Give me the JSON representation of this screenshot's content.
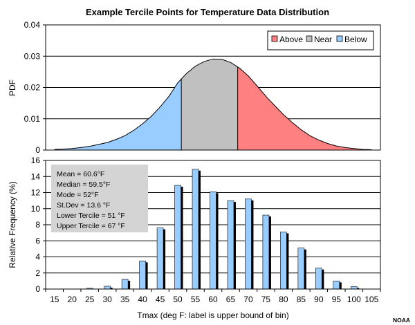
{
  "colors": {
    "below": "#99ccff",
    "near": "#c0c0c0",
    "above": "#ff8080",
    "bar_front": "#99ccff",
    "bar_shadow": "#000000",
    "stats_box": "#d4d4d4",
    "grid": "#000000"
  },
  "credit": "NOAA",
  "chart_data": [
    {
      "type": "area",
      "title": "Example Tercile Points for Temperature Data Distribution",
      "ylabel": "PDF",
      "xlim": [
        12.5,
        107.5
      ],
      "ylim": [
        0,
        0.04
      ],
      "yticks": [
        "0",
        "0.01",
        "0.02",
        "0.03",
        "0.04"
      ],
      "grid": true,
      "legend_position": "top-right",
      "legend": [
        {
          "key": "above",
          "label": "Above"
        },
        {
          "key": "near",
          "label": "Near"
        },
        {
          "key": "below",
          "label": "Below"
        }
      ],
      "lower_tercile": 51,
      "upper_tercile": 67,
      "x": [
        15,
        17.5,
        20,
        22.5,
        25,
        27.5,
        30,
        32.5,
        35,
        37.5,
        40,
        42.5,
        45,
        47.5,
        50,
        52.5,
        55,
        57.5,
        60,
        62.5,
        65,
        67.5,
        70,
        72.5,
        75,
        77.5,
        80,
        82.5,
        85,
        87.5,
        90,
        92.5,
        95,
        97.5,
        100,
        102.5,
        105
      ],
      "y": [
        0.0002,
        0.0003,
        0.0005,
        0.0008,
        0.0012,
        0.0018,
        0.0024,
        0.0034,
        0.0046,
        0.0063,
        0.0084,
        0.0108,
        0.0138,
        0.0172,
        0.0215,
        0.0245,
        0.0268,
        0.0283,
        0.0291,
        0.029,
        0.028,
        0.0262,
        0.0237,
        0.0205,
        0.0172,
        0.0142,
        0.0113,
        0.0088,
        0.0065,
        0.0046,
        0.0032,
        0.0021,
        0.0013,
        0.0008,
        0.0005,
        0.0002,
        0.0001
      ]
    },
    {
      "type": "bar",
      "xlabel": "Tmax (deg F: label is upper bound of bin)",
      "ylabel": "Relative Frequency (%)",
      "ylim": [
        0,
        16
      ],
      "yticks": [
        "0",
        "2",
        "4",
        "6",
        "8",
        "10",
        "12",
        "14",
        "16"
      ],
      "grid": true,
      "categories": [
        "15",
        "20",
        "25",
        "30",
        "35",
        "40",
        "45",
        "50",
        "55",
        "60",
        "65",
        "70",
        "75",
        "80",
        "85",
        "90",
        "95",
        "100",
        "105"
      ],
      "values": [
        0,
        0,
        0.1,
        0.35,
        1.2,
        3.5,
        7.6,
        12.9,
        14.9,
        12.1,
        11.0,
        11.2,
        9.2,
        7.1,
        5.1,
        2.6,
        1.0,
        0.3,
        0
      ],
      "stats": [
        "Mean = 60.6°F",
        "Median = 59.5°F",
        "Mode = 52°F",
        "St.Dev = 13.6 °F",
        "Lower Tercile = 51 °F",
        "Upper Tercile = 67 °F"
      ]
    }
  ]
}
